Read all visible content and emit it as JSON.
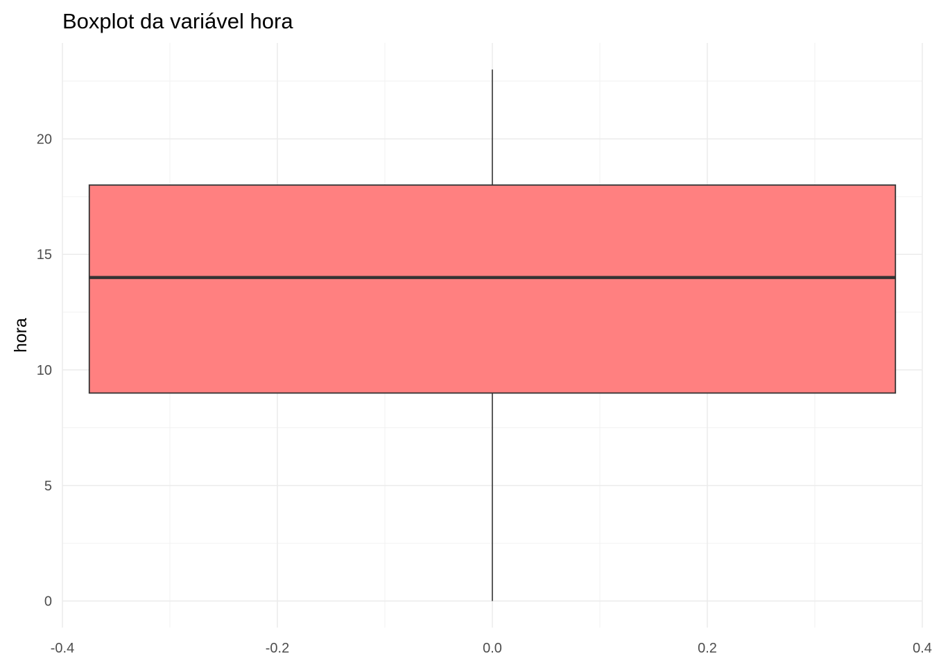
{
  "chart_data": {
    "type": "boxplot",
    "title": "Boxplot da variável hora",
    "xlabel": "",
    "ylabel": "hora",
    "xlim": [
      -0.4,
      0.4
    ],
    "ylim": [
      -1.15,
      24.15
    ],
    "x_ticks": [
      "-0.4",
      "-0.2",
      "0.0",
      "0.2",
      "0.4"
    ],
    "y_ticks": [
      "0",
      "5",
      "10",
      "15",
      "20"
    ],
    "grid": true,
    "box": {
      "x_center": 0.0,
      "x_range": [
        -0.375,
        0.375
      ],
      "min": 0,
      "q1": 9,
      "median": 14,
      "q3": 18,
      "max": 23
    },
    "colors": {
      "box_fill": "#ff8080",
      "box_stroke": "#333333",
      "grid_major": "#ebebeb",
      "grid_minor": "#f2f2f2",
      "tick_text": "#4d4d4d"
    }
  }
}
